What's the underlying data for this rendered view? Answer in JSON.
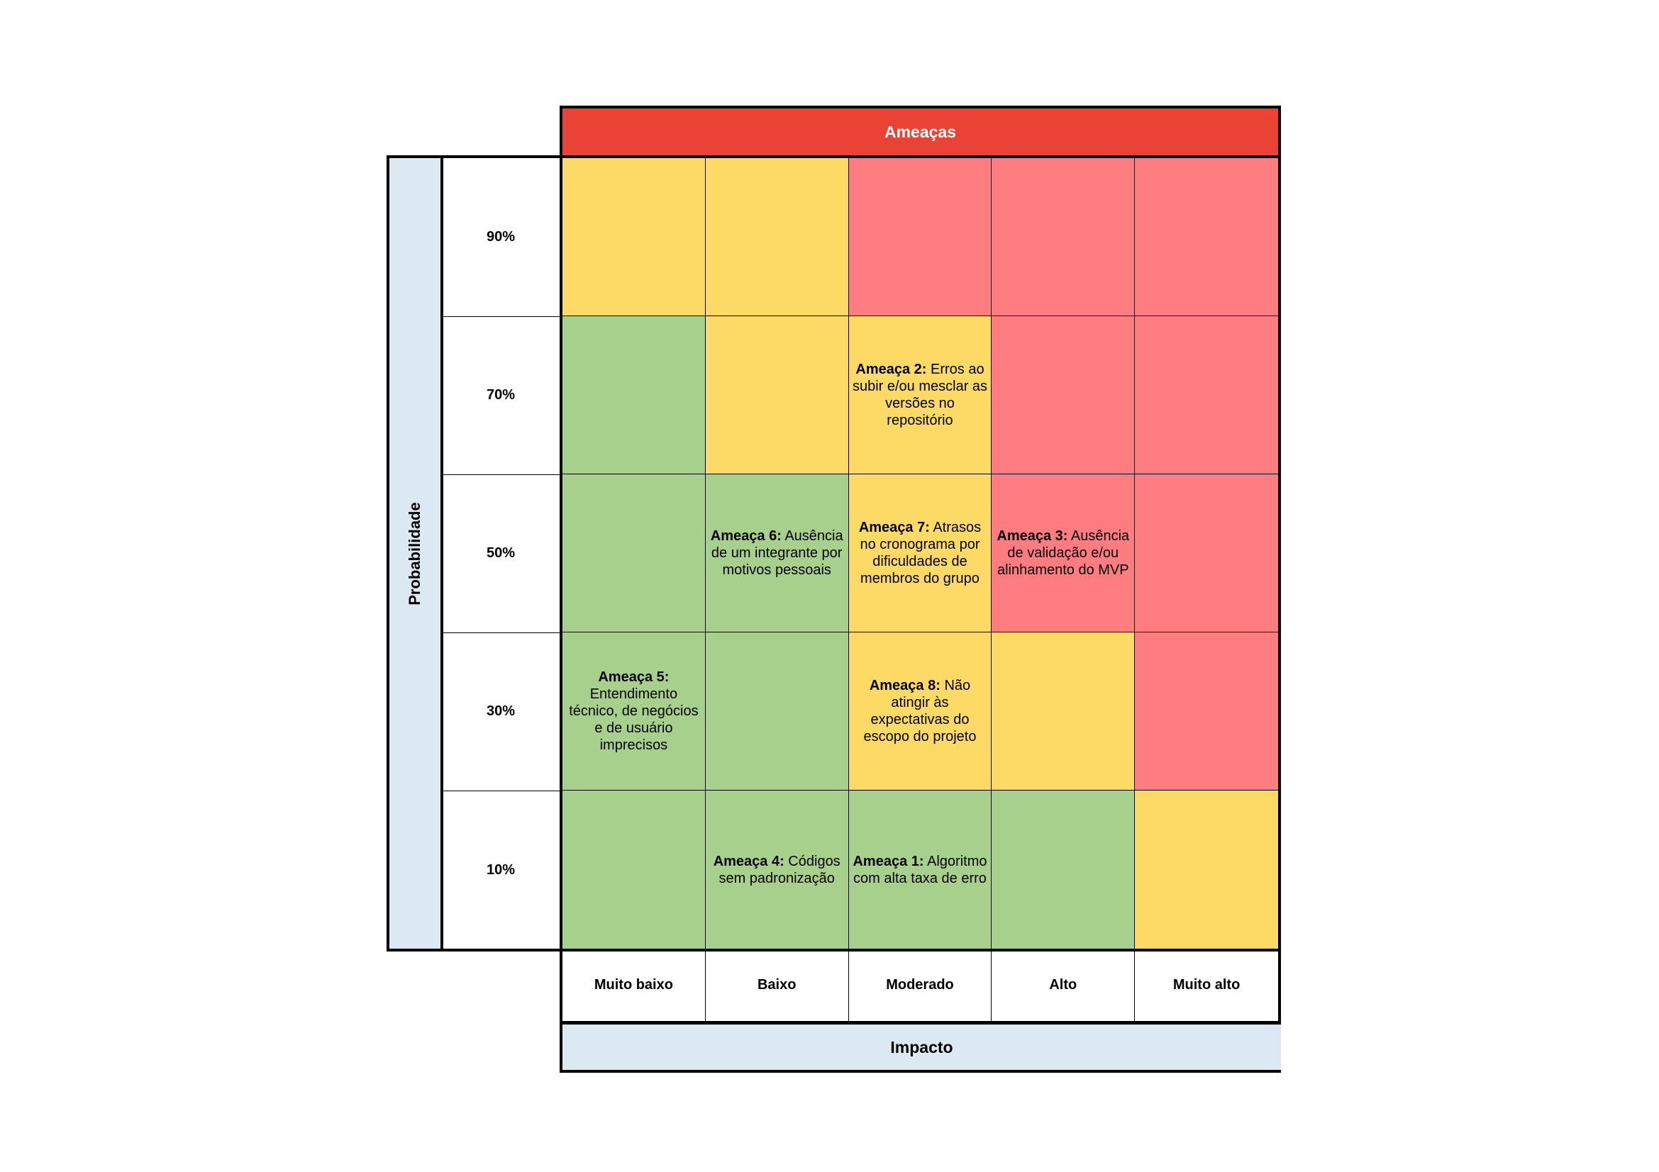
{
  "title": "Ameaças",
  "y_axis_title": "Probabilidade",
  "x_axis_title": "Impacto",
  "colors": {
    "title": "#ea4335",
    "axis": "#dce9f2",
    "green": "#a8d08d",
    "yellow": "#fdd965",
    "red": "#ff7c80"
  },
  "probabilities": [
    "90%",
    "70%",
    "50%",
    "30%",
    "10%"
  ],
  "impacts": [
    "Muito baixo",
    "Baixo",
    "Moderado",
    "Alto",
    "Muito alto"
  ],
  "cells": [
    [
      {
        "color": "yellow"
      },
      {
        "color": "yellow"
      },
      {
        "color": "red"
      },
      {
        "color": "red"
      },
      {
        "color": "red"
      }
    ],
    [
      {
        "color": "green"
      },
      {
        "color": "yellow"
      },
      {
        "color": "yellow",
        "title": "Ameaça 2:",
        "text": "Erros ao subir e/ou mesclar as versões no repositório"
      },
      {
        "color": "red"
      },
      {
        "color": "red"
      }
    ],
    [
      {
        "color": "green"
      },
      {
        "color": "green",
        "title": "Ameaça 6:",
        "text": "Ausência de um integrante por motivos pessoais"
      },
      {
        "color": "yellow",
        "title": "Ameaça 7:",
        "text": "Atrasos no cronograma por dificuldades de membros do grupo"
      },
      {
        "color": "red",
        "title": "Ameaça 3:",
        "text": "Ausência de validação e/ou alinhamento do MVP"
      },
      {
        "color": "red"
      }
    ],
    [
      {
        "color": "green",
        "title": "Ameaça 5:",
        "text": "Entendimento técnico, de negócios e de usuário imprecisos"
      },
      {
        "color": "green"
      },
      {
        "color": "yellow",
        "title": "Ameaça 8:",
        "text": "Não atingir às expectativas do escopo do projeto"
      },
      {
        "color": "yellow"
      },
      {
        "color": "red"
      }
    ],
    [
      {
        "color": "green"
      },
      {
        "color": "green",
        "title": "Ameaça 4:",
        "text": "Códigos sem padronização"
      },
      {
        "color": "green",
        "title": "Ameaça 1:",
        "text": "Algoritmo com alta taxa de erro"
      },
      {
        "color": "green"
      },
      {
        "color": "yellow"
      }
    ]
  ]
}
